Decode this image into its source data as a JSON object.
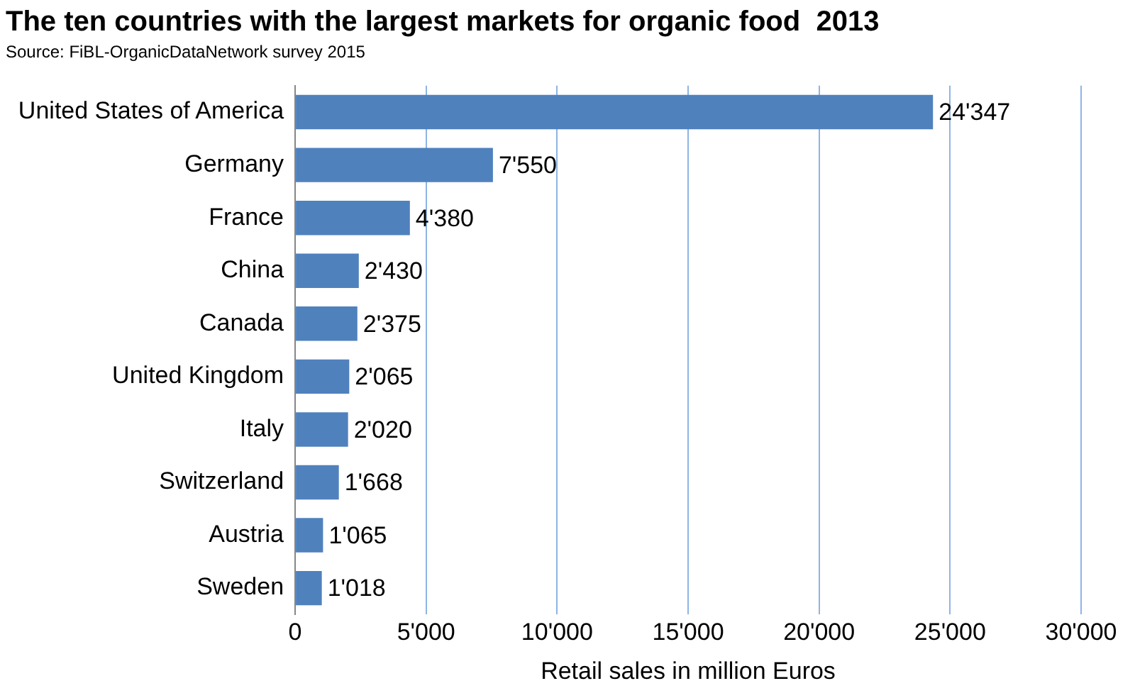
{
  "chart_data": {
    "type": "bar",
    "orientation": "horizontal",
    "title": "The ten countries with the largest markets for organic food  2013",
    "subtitle": "Source: FiBL-OrganicDataNetwork survey 2015",
    "xlabel": "Retail sales in million Euros",
    "categories": [
      "United States of America",
      "Germany",
      "France",
      "China",
      "Canada",
      "United Kingdom",
      "Italy",
      "Switzerland",
      "Austria",
      "Sweden"
    ],
    "values": [
      24347,
      7550,
      4380,
      2430,
      2375,
      2065,
      2020,
      1668,
      1065,
      1018
    ],
    "value_labels": [
      "24'347",
      "7'550",
      "4'380",
      "2'430",
      "2'375",
      "2'065",
      "2'020",
      "1'668",
      "1'065",
      "1'018"
    ],
    "color": "#4f81bd",
    "xlim": [
      0,
      30000
    ],
    "xticks": [
      {
        "value": 0,
        "label": "0"
      },
      {
        "value": 5000,
        "label": "5'000"
      },
      {
        "value": 10000,
        "label": "10'000"
      },
      {
        "value": 15000,
        "label": "15'000"
      },
      {
        "value": 20000,
        "label": "20'000"
      },
      {
        "value": 25000,
        "label": "25'000"
      },
      {
        "value": 30000,
        "label": "30'000"
      }
    ],
    "grid": "x"
  }
}
